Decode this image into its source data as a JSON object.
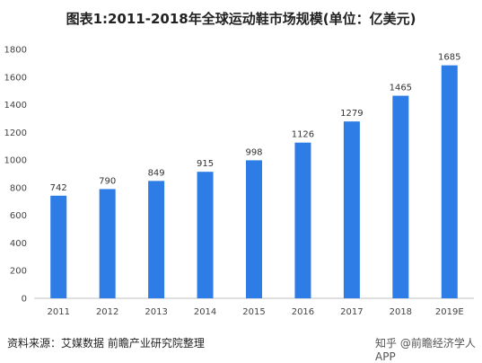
{
  "chart_data": {
    "type": "bar",
    "title": "图表1:2011-2018年全球运动鞋市场规模(单位：亿美元)",
    "categories": [
      "2011",
      "2012",
      "2013",
      "2014",
      "2015",
      "2016",
      "2017",
      "2018",
      "2019E"
    ],
    "values": [
      742,
      790,
      849,
      915,
      998,
      1126,
      1279,
      1465,
      1685
    ],
    "ylim": [
      0,
      1800
    ],
    "yticks": [
      0,
      200,
      400,
      600,
      800,
      1000,
      1200,
      1400,
      1600,
      1800
    ],
    "bar_color": "#2e7ce6",
    "grid": false,
    "legend": "none"
  },
  "source": "资料来源：艾媒数据 前瞻产业研究院整理",
  "watermark": "知乎 @前瞻经济学人APP"
}
